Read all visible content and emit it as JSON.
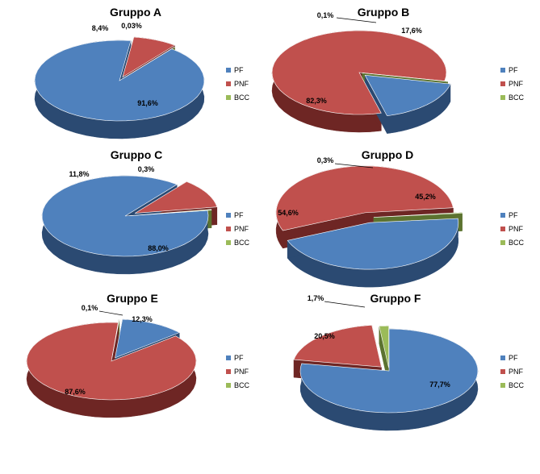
{
  "chart_data": [
    {
      "type": "pie",
      "title": "Gruppo A",
      "categories": [
        "PF",
        "PNF",
        "BCC"
      ],
      "values": [
        91.6,
        8.4,
        0.03
      ],
      "labels": [
        "91,6%",
        "8,4%",
        "0,03%"
      ]
    },
    {
      "type": "pie",
      "title": "Gruppo B",
      "categories": [
        "PF",
        "PNF",
        "BCC"
      ],
      "values": [
        17.6,
        82.3,
        0.1
      ],
      "labels": [
        "17,6%",
        "82,3%",
        "0,1%"
      ]
    },
    {
      "type": "pie",
      "title": "Gruppo C",
      "categories": [
        "PF",
        "PNF",
        "BCC"
      ],
      "values": [
        88.0,
        11.8,
        0.3
      ],
      "labels": [
        "88,0%",
        "11,8%",
        "0,3%"
      ]
    },
    {
      "type": "pie",
      "title": "Gruppo D",
      "categories": [
        "PF",
        "PNF",
        "BCC"
      ],
      "values": [
        45.2,
        54.6,
        0.3
      ],
      "labels": [
        "45,2%",
        "54,6%",
        "0,3%"
      ]
    },
    {
      "type": "pie",
      "title": "Gruppo E",
      "categories": [
        "PF",
        "PNF",
        "BCC"
      ],
      "values": [
        12.3,
        87.6,
        0.1
      ],
      "labels": [
        "12,3%",
        "87,6%",
        "0,1%"
      ]
    },
    {
      "type": "pie",
      "title": "Gruppo F",
      "categories": [
        "PF",
        "PNF",
        "BCC"
      ],
      "values": [
        77.7,
        20.5,
        1.7
      ],
      "labels": [
        "77,7%",
        "20,5%",
        "1,7%"
      ]
    }
  ],
  "legend": {
    "items": [
      {
        "label": "PF",
        "color": "#4F81BD"
      },
      {
        "label": "PNF",
        "color": "#C0504D"
      },
      {
        "label": "BCC",
        "color": "#9BBB59"
      }
    ]
  },
  "colors": {
    "PF": {
      "top": "#4F81BD",
      "side": "#2B4A72"
    },
    "PNF": {
      "top": "#C0504D",
      "side": "#6E2624"
    },
    "BCC": {
      "top": "#9BBB59",
      "side": "#5C7330"
    }
  }
}
